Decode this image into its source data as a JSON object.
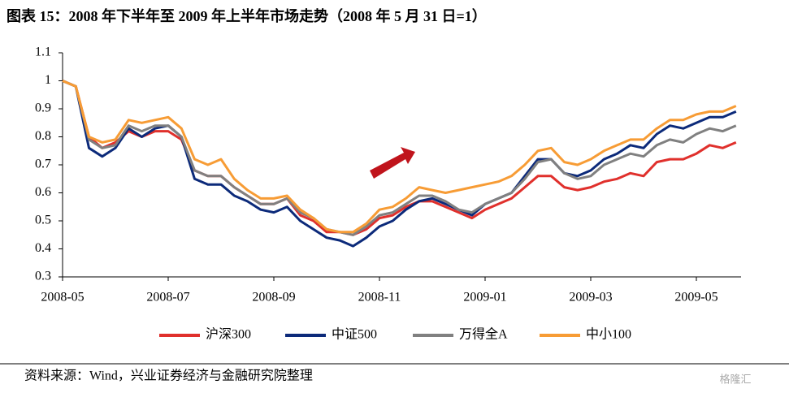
{
  "chart_data": {
    "type": "line",
    "title": "图表 15：2008 年下半年至 2009 年上半年市场走势（2008 年 5 月 31 日=1）",
    "source": "资料来源：Wind，兴业证券经济与金融研究院整理",
    "watermark": "格隆汇",
    "categories": [
      "2008-05",
      null,
      null,
      null,
      null,
      null,
      null,
      null,
      "2008-07",
      null,
      null,
      null,
      null,
      null,
      null,
      null,
      "2008-09",
      null,
      null,
      null,
      null,
      null,
      null,
      null,
      "2008-11",
      null,
      null,
      null,
      null,
      null,
      null,
      null,
      "2009-01",
      null,
      null,
      null,
      null,
      null,
      null,
      null,
      "2009-03",
      null,
      null,
      null,
      null,
      null,
      null,
      null,
      "2009-05",
      null,
      null,
      null
    ],
    "ylim": [
      0.3,
      1.1
    ],
    "yticks": [
      0.3,
      0.4,
      0.5,
      0.6,
      0.7,
      0.8,
      0.9,
      1,
      1.1
    ],
    "grid": false,
    "legend": "bottom",
    "series": [
      {
        "name": "沪深300",
        "color": "#e0302c",
        "values": [
          1.0,
          0.98,
          0.8,
          0.76,
          0.78,
          0.82,
          0.8,
          0.82,
          0.82,
          0.79,
          0.68,
          0.66,
          0.66,
          0.62,
          0.59,
          0.56,
          0.56,
          0.58,
          0.52,
          0.5,
          0.46,
          0.46,
          0.45,
          0.47,
          0.51,
          0.52,
          0.55,
          0.57,
          0.57,
          0.55,
          0.53,
          0.51,
          0.54,
          0.56,
          0.58,
          0.62,
          0.66,
          0.66,
          0.62,
          0.61,
          0.62,
          0.64,
          0.65,
          0.67,
          0.66,
          0.71,
          0.72,
          0.72,
          0.74,
          0.77,
          0.76,
          0.78
        ]
      },
      {
        "name": "中证500",
        "color": "#0c2a7a",
        "values": [
          1.0,
          0.98,
          0.76,
          0.73,
          0.76,
          0.83,
          0.8,
          0.83,
          0.84,
          0.8,
          0.65,
          0.63,
          0.63,
          0.59,
          0.57,
          0.54,
          0.53,
          0.55,
          0.5,
          0.47,
          0.44,
          0.43,
          0.41,
          0.44,
          0.48,
          0.5,
          0.54,
          0.57,
          0.58,
          0.56,
          0.54,
          0.52,
          0.56,
          0.58,
          0.6,
          0.66,
          0.72,
          0.72,
          0.67,
          0.66,
          0.68,
          0.72,
          0.74,
          0.77,
          0.76,
          0.81,
          0.84,
          0.83,
          0.85,
          0.87,
          0.87,
          0.89
        ]
      },
      {
        "name": "万得全A",
        "color": "#808080",
        "values": [
          1.0,
          0.98,
          0.79,
          0.76,
          0.77,
          0.84,
          0.82,
          0.84,
          0.84,
          0.8,
          0.68,
          0.66,
          0.66,
          0.62,
          0.59,
          0.56,
          0.56,
          0.58,
          0.53,
          0.51,
          0.47,
          0.46,
          0.45,
          0.48,
          0.52,
          0.53,
          0.56,
          0.59,
          0.59,
          0.57,
          0.54,
          0.53,
          0.56,
          0.58,
          0.6,
          0.65,
          0.71,
          0.72,
          0.67,
          0.65,
          0.66,
          0.7,
          0.72,
          0.74,
          0.73,
          0.77,
          0.79,
          0.78,
          0.81,
          0.83,
          0.82,
          0.84
        ]
      },
      {
        "name": "中小100",
        "color": "#f79c35",
        "values": [
          1.0,
          0.98,
          0.8,
          0.78,
          0.79,
          0.86,
          0.85,
          0.86,
          0.87,
          0.83,
          0.72,
          0.7,
          0.72,
          0.65,
          0.61,
          0.58,
          0.58,
          0.59,
          0.54,
          0.51,
          0.47,
          0.46,
          0.46,
          0.49,
          0.54,
          0.55,
          0.58,
          0.62,
          0.61,
          0.6,
          0.61,
          0.62,
          0.63,
          0.64,
          0.66,
          0.7,
          0.75,
          0.76,
          0.71,
          0.7,
          0.72,
          0.75,
          0.77,
          0.79,
          0.79,
          0.83,
          0.86,
          0.86,
          0.88,
          0.89,
          0.89,
          0.91
        ]
      }
    ]
  }
}
